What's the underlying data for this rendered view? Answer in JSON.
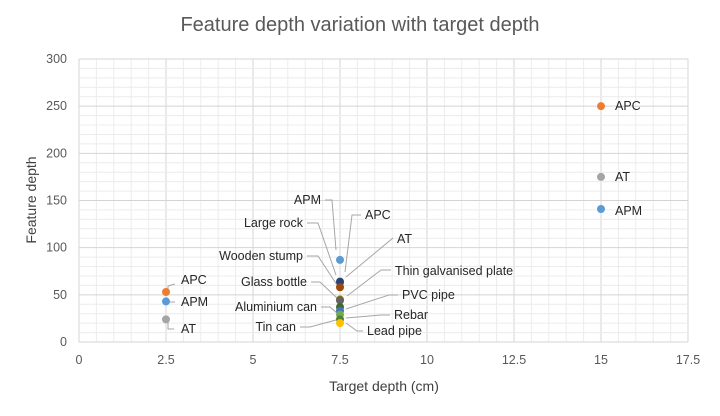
{
  "chart_data": {
    "type": "scatter",
    "title": "Feature depth variation with target depth",
    "xlabel": "Target depth (cm)",
    "ylabel": "Feature depth",
    "xlim": [
      0,
      17.5
    ],
    "ylim": [
      0,
      300
    ],
    "xticks": [
      0,
      2.5,
      5,
      7.5,
      10,
      12.5,
      15,
      17.5
    ],
    "yticks": [
      0,
      50,
      100,
      150,
      200,
      250,
      300
    ],
    "grid": true,
    "legend": "none",
    "points": [
      {
        "label": "APC",
        "x": 2.5,
        "y": 53,
        "color": "#ed7d31"
      },
      {
        "label": "APM",
        "x": 2.5,
        "y": 43,
        "color": "#5b9bd5"
      },
      {
        "label": "AT",
        "x": 2.5,
        "y": 24,
        "color": "#a5a5a5"
      },
      {
        "label": "APC",
        "x": 15,
        "y": 250,
        "color": "#ed7d31"
      },
      {
        "label": "AT",
        "x": 15,
        "y": 175,
        "color": "#a5a5a5"
      },
      {
        "label": "APM",
        "x": 15,
        "y": 141,
        "color": "#5b9bd5"
      },
      {
        "label": "APM",
        "x": 7.5,
        "y": 87,
        "color": "#5b9bd5"
      },
      {
        "label": "APC",
        "x": 7.5,
        "y": 63,
        "color": "#ed7d31"
      },
      {
        "label": "AT",
        "x": 7.5,
        "y": 62,
        "color": "#a5a5a5"
      },
      {
        "label": "Large rock",
        "x": 7.5,
        "y": 64,
        "color": "#264478"
      },
      {
        "label": "Wooden stump",
        "x": 7.5,
        "y": 58,
        "color": "#9e480e"
      },
      {
        "label": "Thin galvanised plate",
        "x": 7.5,
        "y": 45,
        "color": "#997300"
      },
      {
        "label": "Glass bottle",
        "x": 7.5,
        "y": 44,
        "color": "#636363"
      },
      {
        "label": "PVC pipe",
        "x": 7.5,
        "y": 37,
        "color": "#43682b"
      },
      {
        "label": "Aluminium can",
        "x": 7.5,
        "y": 33,
        "color": "#4472c4"
      },
      {
        "label": "Rebar",
        "x": 7.5,
        "y": 29,
        "color": "#70ad47"
      },
      {
        "label": "Tin can",
        "x": 7.5,
        "y": 24,
        "color": "#548235"
      },
      {
        "label": "Lead pipe",
        "x": 7.5,
        "y": 20,
        "color": "#ffc000"
      }
    ]
  }
}
